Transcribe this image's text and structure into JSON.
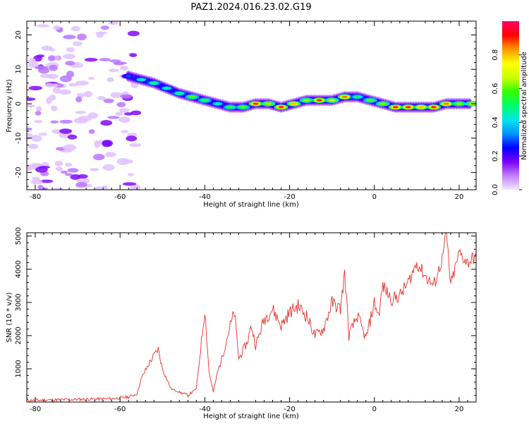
{
  "title": "PAZ1.2024.016.23.02.G19",
  "chart_data": [
    {
      "type": "heatmap",
      "name": "spectrogram",
      "xlabel": "Height of straight line (km)",
      "ylabel": "Frequency (Hz)",
      "xlim": [
        -82,
        24
      ],
      "ylim": [
        -25,
        24
      ],
      "xticks": [
        -80,
        -60,
        -40,
        -20,
        0,
        20
      ],
      "yticks": [
        -20,
        -10,
        0,
        10,
        20
      ],
      "colorbar": {
        "label": "Normalized spectral amplitude",
        "range": [
          0,
          1
        ],
        "ticks": [
          "0.0",
          "0.2",
          "0.4",
          "0.6",
          "0.8"
        ],
        "colors": [
          "#f2e6ff",
          "#c080ff",
          "#7a00ff",
          "#0000ff",
          "#0096ff",
          "#00e6e6",
          "#00ff66",
          "#33ff00",
          "#ccff00",
          "#ffff00",
          "#ff9900",
          "#ff0000",
          "#ff0066"
        ]
      },
      "ridge": {
        "x": [
          -58,
          -55,
          -52,
          -49,
          -46,
          -43,
          -40,
          -37,
          -34,
          -31,
          -28,
          -25,
          -22,
          -19,
          -16,
          -13,
          -10,
          -7,
          -4,
          -1,
          2,
          5,
          8,
          11,
          14,
          17,
          20,
          23
        ],
        "y": [
          8,
          7,
          6,
          4.5,
          3,
          2,
          1,
          0,
          -1,
          -1,
          0,
          0,
          -1,
          0,
          1,
          1,
          1,
          2,
          2,
          1,
          0,
          -1,
          -1,
          -1,
          -1,
          0,
          0,
          0
        ],
        "amplitude": [
          0.3,
          0.45,
          0.5,
          0.45,
          0.5,
          0.6,
          0.55,
          0.45,
          0.55,
          0.6,
          0.9,
          0.7,
          0.9,
          0.8,
          0.65,
          0.9,
          0.7,
          0.85,
          0.5,
          0.6,
          0.65,
          0.9,
          0.9,
          0.8,
          0.9,
          0.85,
          0.65,
          0.7
        ]
      },
      "noise_region_x": [
        -82,
        -56
      ]
    },
    {
      "type": "line",
      "name": "snr",
      "xlabel": "Height of straight line (km)",
      "ylabel": "SNR (10 * v/v)",
      "xlim": [
        -82,
        24
      ],
      "ylim": [
        0,
        5100
      ],
      "xticks": [
        -80,
        -60,
        -40,
        -20,
        0,
        20
      ],
      "yticks": [
        1000,
        2000,
        3000,
        4000,
        5000
      ],
      "color": "#e8302a",
      "x": [
        -82,
        -78,
        -74,
        -70,
        -66,
        -62,
        -58,
        -56,
        -55,
        -53,
        -51,
        -50,
        -48,
        -46,
        -44,
        -42,
        -40,
        -39,
        -38,
        -37,
        -36,
        -34,
        -33,
        -32,
        -30,
        -29,
        -28,
        -26,
        -24,
        -22,
        -20,
        -18,
        -16,
        -14,
        -12,
        -10,
        -8,
        -7,
        -6,
        -4,
        -2,
        0,
        1,
        2,
        4,
        6,
        8,
        10,
        12,
        14,
        16,
        17,
        18,
        20,
        22,
        24
      ],
      "y": [
        50,
        60,
        70,
        80,
        90,
        100,
        150,
        250,
        700,
        1200,
        1600,
        1000,
        400,
        300,
        200,
        400,
        2800,
        900,
        300,
        900,
        1300,
        2300,
        2700,
        1300,
        1800,
        2300,
        1700,
        2500,
        2800,
        2300,
        2700,
        2900,
        2600,
        2000,
        2200,
        3000,
        2800,
        3900,
        2000,
        2600,
        1900,
        3000,
        2600,
        3500,
        3100,
        3200,
        3600,
        4200,
        3800,
        3500,
        4300,
        5100,
        3500,
        4500,
        4200,
        4400
      ]
    }
  ]
}
